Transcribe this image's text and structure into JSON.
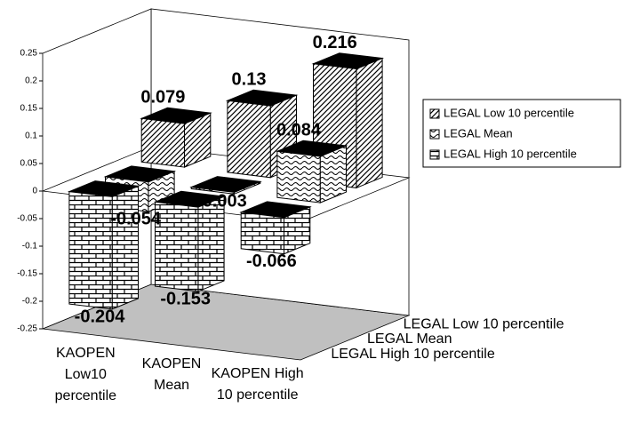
{
  "chart_data": {
    "type": "bar3d",
    "categories": [
      "KAOPEN Low10 percentile",
      "KAOPEN Mean",
      "KAOPEN High 10 percentile"
    ],
    "series": [
      {
        "name": "LEGAL Low 10 percentile",
        "color": "#000000",
        "pattern": "diagonal",
        "values": [
          0.079,
          0.13,
          0.216
        ]
      },
      {
        "name": "LEGAL Mean",
        "color": "#000000",
        "pattern": "wave",
        "values": [
          -0.054,
          -0.003,
          0.084
        ]
      },
      {
        "name": "LEGAL High 10 percentile",
        "color": "#000000",
        "pattern": "brick",
        "values": [
          -0.204,
          -0.153,
          -0.066
        ]
      }
    ],
    "ylim": [
      -0.25,
      0.25
    ],
    "yticks": [
      -0.25,
      -0.2,
      -0.15,
      -0.1,
      -0.05,
      0,
      0.05,
      0.1,
      0.15,
      0.2,
      0.25
    ],
    "floor_color": "#c0c0c0",
    "legend": "right"
  }
}
